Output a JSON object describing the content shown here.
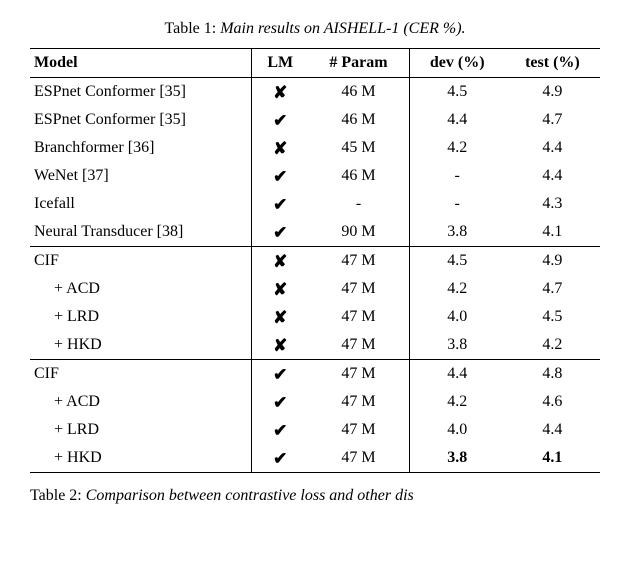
{
  "caption": {
    "label": "Table 1:",
    "title": "Main results on AISHELL-1 (CER %)."
  },
  "headers": {
    "model": "Model",
    "lm": "LM",
    "param": "# Param",
    "dev": "dev (%)",
    "test": "test (%)"
  },
  "marks": {
    "yes": "✔",
    "no": "✘"
  },
  "sections": [
    {
      "rows": [
        {
          "model": "ESPnet Conformer [35]",
          "indent": false,
          "lm": "no",
          "param": "46 M",
          "dev": "4.5",
          "test": "4.9",
          "bold": false
        },
        {
          "model": "ESPnet Conformer [35]",
          "indent": false,
          "lm": "yes",
          "param": "46 M",
          "dev": "4.4",
          "test": "4.7",
          "bold": false
        },
        {
          "model": "Branchformer [36]",
          "indent": false,
          "lm": "no",
          "param": "45 M",
          "dev": "4.2",
          "test": "4.4",
          "bold": false
        },
        {
          "model": "WeNet [37]",
          "indent": false,
          "lm": "yes",
          "param": "46 M",
          "dev": "-",
          "test": "4.4",
          "bold": false
        },
        {
          "model": "Icefall",
          "indent": false,
          "lm": "yes",
          "param": "-",
          "dev": "-",
          "test": "4.3",
          "bold": false
        },
        {
          "model": "Neural Transducer [38]",
          "indent": false,
          "lm": "yes",
          "param": "90 M",
          "dev": "3.8",
          "test": "4.1",
          "bold": false
        }
      ]
    },
    {
      "rows": [
        {
          "model": "CIF",
          "indent": false,
          "lm": "no",
          "param": "47 M",
          "dev": "4.5",
          "test": "4.9",
          "bold": false
        },
        {
          "model": "+ ACD",
          "indent": true,
          "lm": "no",
          "param": "47 M",
          "dev": "4.2",
          "test": "4.7",
          "bold": false
        },
        {
          "model": "+ LRD",
          "indent": true,
          "lm": "no",
          "param": "47 M",
          "dev": "4.0",
          "test": "4.5",
          "bold": false
        },
        {
          "model": "+ HKD",
          "indent": true,
          "lm": "no",
          "param": "47 M",
          "dev": "3.8",
          "test": "4.2",
          "bold": false
        }
      ]
    },
    {
      "rows": [
        {
          "model": "CIF",
          "indent": false,
          "lm": "yes",
          "param": "47 M",
          "dev": "4.4",
          "test": "4.8",
          "bold": false
        },
        {
          "model": "+ ACD",
          "indent": true,
          "lm": "yes",
          "param": "47 M",
          "dev": "4.2",
          "test": "4.6",
          "bold": false
        },
        {
          "model": "+ LRD",
          "indent": true,
          "lm": "yes",
          "param": "47 M",
          "dev": "4.0",
          "test": "4.4",
          "bold": false
        },
        {
          "model": "+ HKD",
          "indent": true,
          "lm": "yes",
          "param": "47 M",
          "dev": "3.8",
          "test": "4.1",
          "bold": true
        }
      ]
    }
  ],
  "footer": {
    "label": "Table 2:",
    "rest": "Comparison between contrastive loss and other dis"
  }
}
